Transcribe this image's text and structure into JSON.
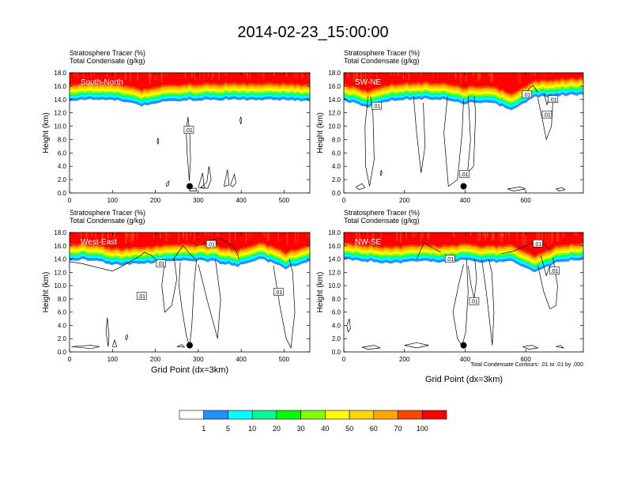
{
  "title": "2014-02-23_15:00:00",
  "panel_headers": {
    "line1_label": "Stratosphere Tracer",
    "line1_unit": "(%)",
    "line2_label": "Total Condensate",
    "line2_unit": "(g/kg)"
  },
  "ylabel": "Height (km)",
  "xlabel": "Grid Point (dx=3km)",
  "contour_note": "Total Condensate Contours: .01 to .01 by .000",
  "colorbar": {
    "levels": [
      "1",
      "5",
      "10",
      "20",
      "30",
      "40",
      "50",
      "60",
      "70",
      "100"
    ],
    "colors": [
      "#ffffff",
      "#1e90ff",
      "#00ffff",
      "#00fa9a",
      "#00ff00",
      "#7fff00",
      "#ffff00",
      "#ffd700",
      "#ffa500",
      "#ff4500",
      "#ff0000"
    ]
  },
  "chart_data": [
    {
      "type": "heatmap",
      "name": "South-North",
      "header": [
        "Stratosphere Tracer (%)",
        "Total Condensate (g/kg)"
      ],
      "xlim": [
        0,
        560
      ],
      "ylim": [
        0,
        18
      ],
      "xticks": [
        0,
        100,
        200,
        300,
        400,
        500
      ],
      "yticks": [
        "0.0",
        "2.0",
        "4.0",
        "6.0",
        "8.0",
        "10.0",
        "12.0",
        "14.0",
        "16.0",
        "18.0"
      ],
      "tracer_base_km": [
        14.2,
        14.3,
        14.2,
        13.3,
        14.1,
        14.2,
        14.3,
        14.3,
        14.2,
        14.3,
        14.1
      ],
      "contour_label": ".01",
      "marker": {
        "x": 280,
        "y_km": 1.0
      }
    },
    {
      "type": "heatmap",
      "name": "SW-NE",
      "header": [
        "Stratosphere Tracer (%)",
        "Total Condensate (g/kg)"
      ],
      "xlim": [
        0,
        790
      ],
      "ylim": [
        0,
        18
      ],
      "xticks": [
        0,
        200,
        400,
        600
      ],
      "yticks": [
        "0.0",
        "2.0",
        "4.0",
        "6.0",
        "8.0",
        "10.0",
        "12.0",
        "14.0",
        "16.0",
        "18.0"
      ],
      "tracer_base_km": [
        14.1,
        13.2,
        14.2,
        14.4,
        14.3,
        13.7,
        14.0,
        12.8,
        14.6,
        14.9,
        15.0
      ],
      "contour_label": ".01",
      "marker": {
        "x": 395,
        "y_km": 1.0
      }
    },
    {
      "type": "heatmap",
      "name": "West-East",
      "header": [
        "Stratosphere Tracer (%)",
        "Total Condensate (g/kg)"
      ],
      "xlim": [
        0,
        560
      ],
      "ylim": [
        0,
        18
      ],
      "xticks": [
        0,
        100,
        200,
        300,
        400,
        500
      ],
      "yticks": [
        "0.0",
        "2.0",
        "4.0",
        "6.0",
        "8.0",
        "10.0",
        "12.0",
        "14.0",
        "16.0",
        "18.0"
      ],
      "tracer_base_km": [
        14.2,
        14.1,
        13.4,
        13.6,
        14.0,
        14.1,
        13.9,
        13.2,
        14.3,
        12.9,
        13.9
      ],
      "contour_label": ".01",
      "marker": {
        "x": 280,
        "y_km": 1.0
      }
    },
    {
      "type": "heatmap",
      "name": "NW-SE",
      "header": [
        "Stratosphere Tracer (%)",
        "Total Condensate (g/kg)"
      ],
      "xlim": [
        0,
        790
      ],
      "ylim": [
        0,
        18
      ],
      "xticks": [
        0,
        200,
        400,
        600
      ],
      "yticks": [
        "0.0",
        "2.0",
        "4.0",
        "6.0",
        "8.0",
        "10.0",
        "12.0",
        "14.0",
        "16.0",
        "18.0"
      ],
      "tracer_base_km": [
        14.2,
        14.0,
        13.6,
        14.1,
        13.7,
        14.1,
        13.8,
        14.0,
        12.3,
        13.9,
        14.3
      ],
      "contour_label": ".01",
      "marker": {
        "x": 395,
        "y_km": 1.0
      }
    }
  ]
}
